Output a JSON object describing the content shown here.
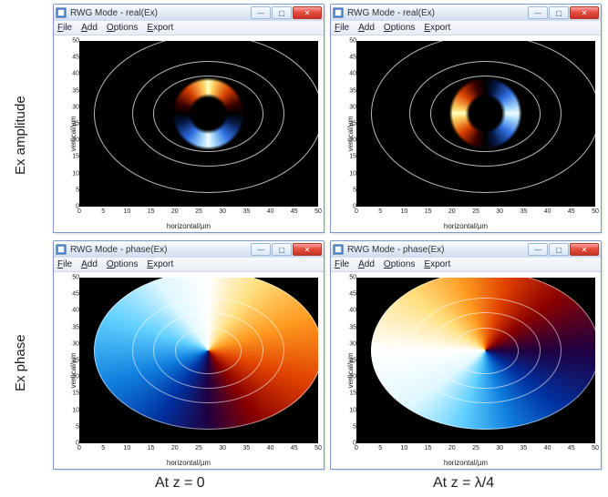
{
  "row_labels": {
    "amplitude": "Ex amplitude",
    "phase": "Ex phase"
  },
  "col_labels": {
    "z0": "At z = 0",
    "z1": "At z = λ/4"
  },
  "windows": {
    "amp_z0": {
      "title": "RWG Mode - real(Ex)"
    },
    "amp_z1": {
      "title": "RWG Mode - real(Ex)"
    },
    "pha_z0": {
      "title": "RWG Mode - phase(Ex)"
    },
    "pha_z1": {
      "title": "RWG Mode - phase(Ex)"
    }
  },
  "menu": {
    "file": "File",
    "add": "Add",
    "options": "Options",
    "export": "Export"
  },
  "winbuttons": {
    "min": "—",
    "max": "▢",
    "close": "✕"
  },
  "axes": {
    "xlabel": "horizontal/µm",
    "ylabel": "vertical/µm",
    "xticks": [
      "0",
      "5",
      "10",
      "15",
      "20",
      "25",
      "30",
      "35",
      "40",
      "45",
      "50"
    ],
    "yticks": [
      "0",
      "5",
      "10",
      "15",
      "20",
      "25",
      "30",
      "35",
      "40",
      "45",
      "50"
    ],
    "xlim": [
      0,
      50
    ],
    "ylim": [
      0,
      50
    ]
  },
  "plot_geometry": {
    "center_um": [
      27,
      28
    ],
    "outline_radii_um": [
      24,
      16,
      11.5,
      7
    ],
    "mode_ring": {
      "r_mid_um": 9.5,
      "thickness_um": 5
    }
  },
  "colors": {
    "bg_field": "#000000",
    "outline_gray": "#b8b8b8",
    "outline_white": "#ffffff",
    "hot": [
      "#3a0000",
      "#8a1200",
      "#d84000",
      "#ff8a00",
      "#ffd060",
      "#ffffc0"
    ],
    "cold": [
      "#081a4a",
      "#1a3fa8",
      "#2d6de0",
      "#58b0ff",
      "#b0e0ff",
      "#f0fbff"
    ],
    "phase_stops": [
      "#ffffff",
      "#ffe080",
      "#ff9a20",
      "#e04000",
      "#8a0000",
      "#200040",
      "#0030a0",
      "#1080e0",
      "#60d0ff",
      "#e0f8ff",
      "#ffffff"
    ]
  },
  "amp_orientation_deg": {
    "z0": 0,
    "z1": 270
  },
  "phase_orientation_deg": {
    "z0": 0,
    "z1": 90
  }
}
